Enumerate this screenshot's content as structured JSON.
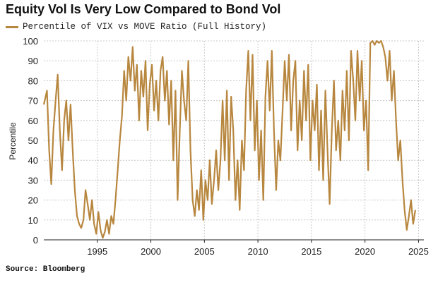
{
  "title": "Equity Vol Is Very Low Compared to Bond Vol",
  "source": "Source: Bloomberg",
  "colors": {
    "series": "#b8873f",
    "grid": "#c8c8c8",
    "axis": "#222222"
  },
  "chart_data": {
    "type": "line",
    "ylabel": "Percentile",
    "xlabel": "",
    "ylim": [
      0,
      100
    ],
    "xlim": [
      1990,
      2025.5
    ],
    "yticks": [
      0,
      10,
      20,
      30,
      40,
      50,
      60,
      70,
      80,
      90,
      100
    ],
    "xticks": [
      1995,
      2000,
      2005,
      2010,
      2015,
      2020,
      2025
    ],
    "legend": "top-left",
    "grid": true,
    "series": [
      {
        "name": "Percentile of VIX vs MOVE Ratio (Full History)",
        "points": [
          [
            1990.0,
            68
          ],
          [
            1990.3,
            75
          ],
          [
            1990.5,
            45
          ],
          [
            1990.7,
            28
          ],
          [
            1990.9,
            55
          ],
          [
            1991.1,
            70
          ],
          [
            1991.3,
            83
          ],
          [
            1991.5,
            55
          ],
          [
            1991.7,
            35
          ],
          [
            1991.9,
            60
          ],
          [
            1992.1,
            70
          ],
          [
            1992.3,
            50
          ],
          [
            1992.5,
            68
          ],
          [
            1992.7,
            45
          ],
          [
            1992.9,
            25
          ],
          [
            1993.1,
            12
          ],
          [
            1993.3,
            8
          ],
          [
            1993.5,
            6
          ],
          [
            1993.7,
            10
          ],
          [
            1993.9,
            25
          ],
          [
            1994.1,
            18
          ],
          [
            1994.3,
            10
          ],
          [
            1994.5,
            20
          ],
          [
            1994.7,
            8
          ],
          [
            1994.9,
            3
          ],
          [
            1995.1,
            14
          ],
          [
            1995.3,
            5
          ],
          [
            1995.5,
            1
          ],
          [
            1995.7,
            4
          ],
          [
            1995.9,
            10
          ],
          [
            1996.1,
            3
          ],
          [
            1996.3,
            12
          ],
          [
            1996.5,
            8
          ],
          [
            1996.7,
            20
          ],
          [
            1996.9,
            35
          ],
          [
            1997.1,
            50
          ],
          [
            1997.3,
            62
          ],
          [
            1997.5,
            85
          ],
          [
            1997.7,
            70
          ],
          [
            1997.9,
            92
          ],
          [
            1998.1,
            80
          ],
          [
            1998.3,
            97
          ],
          [
            1998.5,
            75
          ],
          [
            1998.7,
            88
          ],
          [
            1998.9,
            60
          ],
          [
            1999.1,
            85
          ],
          [
            1999.3,
            72
          ],
          [
            1999.5,
            90
          ],
          [
            1999.7,
            55
          ],
          [
            1999.9,
            78
          ],
          [
            2000.1,
            88
          ],
          [
            2000.3,
            65
          ],
          [
            2000.5,
            80
          ],
          [
            2000.7,
            60
          ],
          [
            2000.9,
            85
          ],
          [
            2001.1,
            92
          ],
          [
            2001.3,
            70
          ],
          [
            2001.5,
            85
          ],
          [
            2001.7,
            58
          ],
          [
            2001.9,
            80
          ],
          [
            2002.1,
            40
          ],
          [
            2002.3,
            75
          ],
          [
            2002.5,
            20
          ],
          [
            2002.7,
            55
          ],
          [
            2002.9,
            85
          ],
          [
            2003.1,
            70
          ],
          [
            2003.3,
            60
          ],
          [
            2003.5,
            90
          ],
          [
            2003.7,
            45
          ],
          [
            2003.9,
            20
          ],
          [
            2004.1,
            12
          ],
          [
            2004.3,
            25
          ],
          [
            2004.5,
            15
          ],
          [
            2004.7,
            35
          ],
          [
            2004.9,
            10
          ],
          [
            2005.1,
            30
          ],
          [
            2005.3,
            20
          ],
          [
            2005.5,
            40
          ],
          [
            2005.7,
            18
          ],
          [
            2005.9,
            30
          ],
          [
            2006.1,
            45
          ],
          [
            2006.3,
            25
          ],
          [
            2006.5,
            40
          ],
          [
            2006.7,
            70
          ],
          [
            2006.9,
            40
          ],
          [
            2007.1,
            75
          ],
          [
            2007.3,
            30
          ],
          [
            2007.5,
            72
          ],
          [
            2007.7,
            55
          ],
          [
            2007.9,
            20
          ],
          [
            2008.1,
            40
          ],
          [
            2008.3,
            15
          ],
          [
            2008.5,
            50
          ],
          [
            2008.7,
            35
          ],
          [
            2008.9,
            75
          ],
          [
            2009.1,
            95
          ],
          [
            2009.3,
            60
          ],
          [
            2009.5,
            93
          ],
          [
            2009.7,
            45
          ],
          [
            2009.9,
            70
          ],
          [
            2010.1,
            30
          ],
          [
            2010.3,
            55
          ],
          [
            2010.5,
            20
          ],
          [
            2010.7,
            72
          ],
          [
            2010.9,
            90
          ],
          [
            2011.1,
            65
          ],
          [
            2011.3,
            95
          ],
          [
            2011.5,
            55
          ],
          [
            2011.7,
            25
          ],
          [
            2011.9,
            50
          ],
          [
            2012.1,
            40
          ],
          [
            2012.3,
            65
          ],
          [
            2012.5,
            90
          ],
          [
            2012.7,
            70
          ],
          [
            2012.9,
            93
          ],
          [
            2013.1,
            55
          ],
          [
            2013.3,
            80
          ],
          [
            2013.5,
            90
          ],
          [
            2013.7,
            45
          ],
          [
            2013.9,
            70
          ],
          [
            2014.1,
            50
          ],
          [
            2014.3,
            85
          ],
          [
            2014.5,
            60
          ],
          [
            2014.7,
            88
          ],
          [
            2014.9,
            40
          ],
          [
            2015.1,
            70
          ],
          [
            2015.3,
            55
          ],
          [
            2015.5,
            78
          ],
          [
            2015.7,
            35
          ],
          [
            2015.9,
            65
          ],
          [
            2016.1,
            30
          ],
          [
            2016.3,
            75
          ],
          [
            2016.5,
            45
          ],
          [
            2016.7,
            18
          ],
          [
            2016.9,
            55
          ],
          [
            2017.1,
            80
          ],
          [
            2017.3,
            45
          ],
          [
            2017.5,
            60
          ],
          [
            2017.7,
            40
          ],
          [
            2017.9,
            75
          ],
          [
            2018.1,
            55
          ],
          [
            2018.3,
            85
          ],
          [
            2018.5,
            50
          ],
          [
            2018.7,
            95
          ],
          [
            2018.9,
            80
          ],
          [
            2019.1,
            60
          ],
          [
            2019.3,
            95
          ],
          [
            2019.5,
            70
          ],
          [
            2019.7,
            90
          ],
          [
            2019.9,
            55
          ],
          [
            2020.1,
            70
          ],
          [
            2020.3,
            35
          ],
          [
            2020.5,
            99
          ],
          [
            2020.7,
            100
          ],
          [
            2020.9,
            98
          ],
          [
            2021.1,
            100
          ],
          [
            2021.3,
            99
          ],
          [
            2021.5,
            100
          ],
          [
            2021.7,
            97
          ],
          [
            2021.9,
            92
          ],
          [
            2022.1,
            80
          ],
          [
            2022.3,
            95
          ],
          [
            2022.5,
            70
          ],
          [
            2022.7,
            85
          ],
          [
            2022.9,
            60
          ],
          [
            2023.1,
            40
          ],
          [
            2023.3,
            50
          ],
          [
            2023.5,
            30
          ],
          [
            2023.7,
            15
          ],
          [
            2023.9,
            5
          ],
          [
            2024.1,
            12
          ],
          [
            2024.3,
            20
          ],
          [
            2024.5,
            8
          ],
          [
            2024.7,
            15
          ]
        ]
      }
    ]
  }
}
